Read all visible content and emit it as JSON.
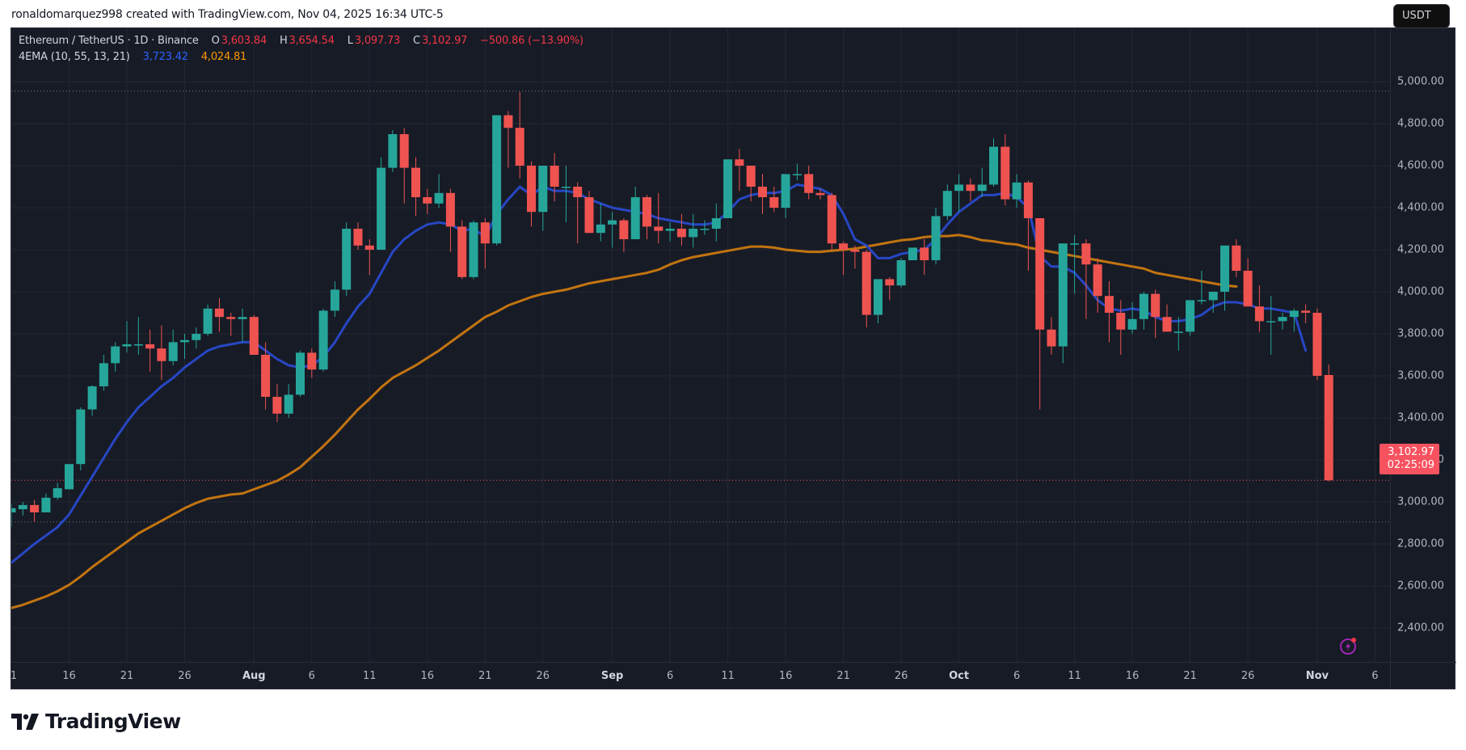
{
  "credit": "ronaldomarquez998 created with TradingView.com, Nov 04, 2025 16:34 UTC-5",
  "legend": {
    "symbol": "Ethereum / TetherUS · 1D · Binance",
    "open_key": "O",
    "open": "3,603.84",
    "high_key": "H",
    "high": "3,654.54",
    "low_key": "L",
    "low": "3,097.73",
    "close_key": "C",
    "close": "3,102.97",
    "change": "−500.86 (−13.90%)",
    "indicator": "4EMA (10, 55, 13, 21)",
    "ema_fast": "3,723.42",
    "ema_slow": "4,024.81"
  },
  "currency_button": "USDT",
  "last_price": {
    "value": "3,102.97",
    "countdown": "02:25:09"
  },
  "brand": "TradingView",
  "icons": {
    "alert": "lightning-alert-icon",
    "logo": "tradingview-logo-icon"
  },
  "colors": {
    "background": "#171b26",
    "grid": "#232733",
    "up": "#26a69a",
    "down": "#ef5350",
    "ema_fast": "#2747c4",
    "ema_slow": "#c27410",
    "last_price": "#f7525f"
  },
  "chart_data": {
    "type": "candlestick",
    "title": "Ethereum / TetherUS · 1D · Binance",
    "xlabel": "",
    "ylabel": "USDT",
    "ylim": [
      2250,
      5060
    ],
    "grid": true,
    "price_ticks": [
      "5,000.00",
      "4,800.00",
      "4,600.00",
      "4,400.00",
      "4,200.00",
      "4,000.00",
      "3,800.00",
      "3,600.00",
      "3,400.00",
      "3,200.00",
      "3,000.00",
      "2,800.00",
      "2,600.00",
      "2,400.00"
    ],
    "price_tick_values": [
      5000,
      4800,
      4600,
      4400,
      4200,
      4000,
      3800,
      3600,
      3400,
      3200,
      3000,
      2800,
      2600,
      2400
    ],
    "time_ticks": [
      {
        "label": "1",
        "day": 0,
        "bold": false
      },
      {
        "label": "16",
        "day": 5,
        "bold": false
      },
      {
        "label": "21",
        "day": 10,
        "bold": false
      },
      {
        "label": "26",
        "day": 15,
        "bold": false
      },
      {
        "label": "Aug",
        "day": 21,
        "bold": true
      },
      {
        "label": "6",
        "day": 26,
        "bold": false
      },
      {
        "label": "11",
        "day": 31,
        "bold": false
      },
      {
        "label": "16",
        "day": 36,
        "bold": false
      },
      {
        "label": "21",
        "day": 41,
        "bold": false
      },
      {
        "label": "26",
        "day": 46,
        "bold": false
      },
      {
        "label": "Sep",
        "day": 52,
        "bold": true
      },
      {
        "label": "6",
        "day": 57,
        "bold": false
      },
      {
        "label": "11",
        "day": 62,
        "bold": false
      },
      {
        "label": "16",
        "day": 67,
        "bold": false
      },
      {
        "label": "21",
        "day": 72,
        "bold": false
      },
      {
        "label": "26",
        "day": 77,
        "bold": false
      },
      {
        "label": "Oct",
        "day": 82,
        "bold": true
      },
      {
        "label": "6",
        "day": 87,
        "bold": false
      },
      {
        "label": "11",
        "day": 92,
        "bold": false
      },
      {
        "label": "16",
        "day": 97,
        "bold": false
      },
      {
        "label": "21",
        "day": 102,
        "bold": false
      },
      {
        "label": "26",
        "day": 107,
        "bold": false
      },
      {
        "label": "Nov",
        "day": 113,
        "bold": true
      },
      {
        "label": "6",
        "day": 118,
        "bold": false
      }
    ],
    "dotted_levels": [
      4955,
      3102.97,
      2905
    ],
    "candles": [
      [
        2950,
        2990,
        2880,
        2970
      ],
      [
        2965,
        3000,
        2935,
        2985
      ],
      [
        2985,
        3010,
        2905,
        2950
      ],
      [
        2950,
        3040,
        2950,
        3020
      ],
      [
        3020,
        3090,
        3010,
        3065
      ],
      [
        3060,
        3180,
        3060,
        3180
      ],
      [
        3180,
        3450,
        3150,
        3440
      ],
      [
        3440,
        3555,
        3410,
        3550
      ],
      [
        3550,
        3700,
        3530,
        3660
      ],
      [
        3660,
        3760,
        3620,
        3740
      ],
      [
        3740,
        3860,
        3710,
        3750
      ],
      [
        3750,
        3880,
        3700,
        3750
      ],
      [
        3750,
        3820,
        3620,
        3730
      ],
      [
        3730,
        3840,
        3580,
        3670
      ],
      [
        3670,
        3820,
        3650,
        3760
      ],
      [
        3760,
        3800,
        3680,
        3770
      ],
      [
        3770,
        3830,
        3730,
        3800
      ],
      [
        3800,
        3940,
        3790,
        3920
      ],
      [
        3920,
        3970,
        3810,
        3880
      ],
      [
        3880,
        3900,
        3790,
        3870
      ],
      [
        3870,
        3920,
        3760,
        3880
      ],
      [
        3880,
        3890,
        3700,
        3700
      ],
      [
        3700,
        3760,
        3440,
        3500
      ],
      [
        3500,
        3560,
        3380,
        3420
      ],
      [
        3420,
        3560,
        3400,
        3510
      ],
      [
        3510,
        3720,
        3500,
        3710
      ],
      [
        3710,
        3730,
        3590,
        3630
      ],
      [
        3630,
        3920,
        3620,
        3910
      ],
      [
        3910,
        4050,
        3880,
        4010
      ],
      [
        4010,
        4330,
        3980,
        4300
      ],
      [
        4300,
        4330,
        4200,
        4220
      ],
      [
        4220,
        4250,
        4080,
        4200
      ],
      [
        4200,
        4640,
        4200,
        4590
      ],
      [
        4590,
        4770,
        4570,
        4750
      ],
      [
        4750,
        4780,
        4420,
        4590
      ],
      [
        4590,
        4640,
        4360,
        4450
      ],
      [
        4450,
        4490,
        4370,
        4420
      ],
      [
        4420,
        4560,
        4400,
        4470
      ],
      [
        4470,
        4490,
        4190,
        4310
      ],
      [
        4310,
        4340,
        4060,
        4070
      ],
      [
        4070,
        4340,
        4060,
        4330
      ],
      [
        4330,
        4350,
        4110,
        4230
      ],
      [
        4230,
        4760,
        4220,
        4840
      ],
      [
        4840,
        4860,
        4590,
        4780
      ],
      [
        4780,
        4950,
        4540,
        4600
      ],
      [
        4600,
        4620,
        4310,
        4380
      ],
      [
        4380,
        4600,
        4290,
        4600
      ],
      [
        4600,
        4660,
        4430,
        4500
      ],
      [
        4500,
        4600,
        4330,
        4500
      ],
      [
        4500,
        4520,
        4230,
        4450
      ],
      [
        4450,
        4480,
        4280,
        4280
      ],
      [
        4280,
        4420,
        4240,
        4320
      ],
      [
        4320,
        4380,
        4210,
        4340
      ],
      [
        4340,
        4350,
        4190,
        4250
      ],
      [
        4250,
        4500,
        4250,
        4450
      ],
      [
        4450,
        4460,
        4250,
        4310
      ],
      [
        4310,
        4470,
        4230,
        4290
      ],
      [
        4290,
        4330,
        4240,
        4300
      ],
      [
        4300,
        4370,
        4220,
        4260
      ],
      [
        4260,
        4370,
        4210,
        4300
      ],
      [
        4300,
        4340,
        4270,
        4300
      ],
      [
        4300,
        4420,
        4240,
        4350
      ],
      [
        4350,
        4550,
        4350,
        4630
      ],
      [
        4630,
        4680,
        4480,
        4600
      ],
      [
        4600,
        4600,
        4430,
        4500
      ],
      [
        4500,
        4560,
        4370,
        4450
      ],
      [
        4450,
        4500,
        4380,
        4400
      ],
      [
        4400,
        4560,
        4350,
        4560
      ],
      [
        4560,
        4610,
        4530,
        4560
      ],
      [
        4560,
        4600,
        4440,
        4470
      ],
      [
        4470,
        4490,
        4440,
        4460
      ],
      [
        4460,
        4470,
        4200,
        4230
      ],
      [
        4230,
        4240,
        4080,
        4200
      ],
      [
        4200,
        4220,
        4110,
        4190
      ],
      [
        4190,
        4200,
        3830,
        3890
      ],
      [
        3890,
        4060,
        3850,
        4060
      ],
      [
        4060,
        4070,
        3960,
        4030
      ],
      [
        4030,
        4160,
        4020,
        4150
      ],
      [
        4150,
        4210,
        4150,
        4210
      ],
      [
        4210,
        4250,
        4080,
        4150
      ],
      [
        4150,
        4400,
        4130,
        4360
      ],
      [
        4360,
        4510,
        4340,
        4480
      ],
      [
        4480,
        4560,
        4380,
        4510
      ],
      [
        4510,
        4540,
        4430,
        4480
      ],
      [
        4480,
        4590,
        4450,
        4510
      ],
      [
        4510,
        4730,
        4500,
        4690
      ],
      [
        4690,
        4750,
        4410,
        4440
      ],
      [
        4440,
        4560,
        4400,
        4520
      ],
      [
        4520,
        4530,
        4100,
        4350
      ],
      [
        4350,
        4340,
        3440,
        3820
      ],
      [
        3820,
        3880,
        3700,
        3740
      ],
      [
        3740,
        4190,
        3660,
        4230
      ],
      [
        4230,
        4270,
        3990,
        4230
      ],
      [
        4230,
        4250,
        3870,
        4130
      ],
      [
        4130,
        4160,
        3900,
        3980
      ],
      [
        3980,
        4050,
        3760,
        3900
      ],
      [
        3900,
        3960,
        3700,
        3820
      ],
      [
        3820,
        3950,
        3800,
        3870
      ],
      [
        3870,
        4000,
        3820,
        3990
      ],
      [
        3990,
        4010,
        3780,
        3880
      ],
      [
        3880,
        3940,
        3820,
        3810
      ],
      [
        3810,
        3880,
        3720,
        3810
      ],
      [
        3810,
        3940,
        3790,
        3960
      ],
      [
        3960,
        4100,
        3940,
        3960
      ],
      [
        3960,
        4000,
        3900,
        4000
      ],
      [
        4000,
        4200,
        3910,
        4220
      ],
      [
        4220,
        4250,
        4070,
        4100
      ],
      [
        4100,
        4160,
        3940,
        3930
      ],
      [
        3930,
        4030,
        3810,
        3860
      ],
      [
        3860,
        3980,
        3700,
        3860
      ],
      [
        3860,
        3900,
        3820,
        3880
      ],
      [
        3880,
        3920,
        3810,
        3910
      ],
      [
        3910,
        3940,
        3850,
        3900
      ],
      [
        3900,
        3920,
        3580,
        3600
      ],
      [
        3603.84,
        3654.54,
        3097.73,
        3102.97
      ]
    ],
    "ema_fast": [
      2710,
      2755,
      2800,
      2840,
      2880,
      2940,
      3030,
      3120,
      3210,
      3300,
      3380,
      3450,
      3500,
      3550,
      3590,
      3640,
      3680,
      3720,
      3740,
      3750,
      3760,
      3760,
      3720,
      3680,
      3650,
      3640,
      3650,
      3690,
      3760,
      3850,
      3930,
      3990,
      4090,
      4190,
      4250,
      4290,
      4320,
      4330,
      4320,
      4290,
      4300,
      4260,
      4370,
      4440,
      4500,
      4460,
      4500,
      4480,
      4480,
      4470,
      4440,
      4420,
      4400,
      4390,
      4380,
      4370,
      4350,
      4340,
      4330,
      4320,
      4320,
      4330,
      4380,
      4440,
      4460,
      4470,
      4470,
      4480,
      4510,
      4500,
      4490,
      4460,
      4370,
      4250,
      4220,
      4160,
      4160,
      4180,
      4190,
      4200,
      4250,
      4320,
      4380,
      4420,
      4460,
      4460,
      4470,
      4450,
      4400,
      4170,
      4120,
      4120,
      4090,
      4030,
      3960,
      3920,
      3910,
      3920,
      3910,
      3880,
      3860,
      3860,
      3870,
      3890,
      3930,
      3950,
      3950,
      3940,
      3920,
      3920,
      3910,
      3900,
      3720
    ],
    "ema_slow": [
      2495,
      2510,
      2530,
      2550,
      2575,
      2605,
      2645,
      2690,
      2730,
      2770,
      2810,
      2850,
      2880,
      2910,
      2940,
      2970,
      2995,
      3015,
      3025,
      3035,
      3040,
      3060,
      3080,
      3100,
      3130,
      3165,
      3215,
      3265,
      3320,
      3380,
      3440,
      3490,
      3545,
      3590,
      3620,
      3650,
      3685,
      3720,
      3760,
      3800,
      3840,
      3880,
      3905,
      3935,
      3955,
      3975,
      3990,
      4000,
      4010,
      4025,
      4040,
      4050,
      4060,
      4070,
      4080,
      4090,
      4105,
      4130,
      4150,
      4165,
      4175,
      4185,
      4195,
      4205,
      4215,
      4215,
      4210,
      4200,
      4195,
      4190,
      4190,
      4195,
      4200,
      4205,
      4215,
      4225,
      4235,
      4245,
      4250,
      4260,
      4265,
      4265,
      4270,
      4260,
      4245,
      4240,
      4230,
      4225,
      4210,
      4200,
      4190,
      4180,
      4170,
      4160,
      4150,
      4140,
      4130,
      4120,
      4110,
      4090,
      4080,
      4070,
      4060,
      4050,
      4040,
      4030,
      4024.81
    ]
  }
}
